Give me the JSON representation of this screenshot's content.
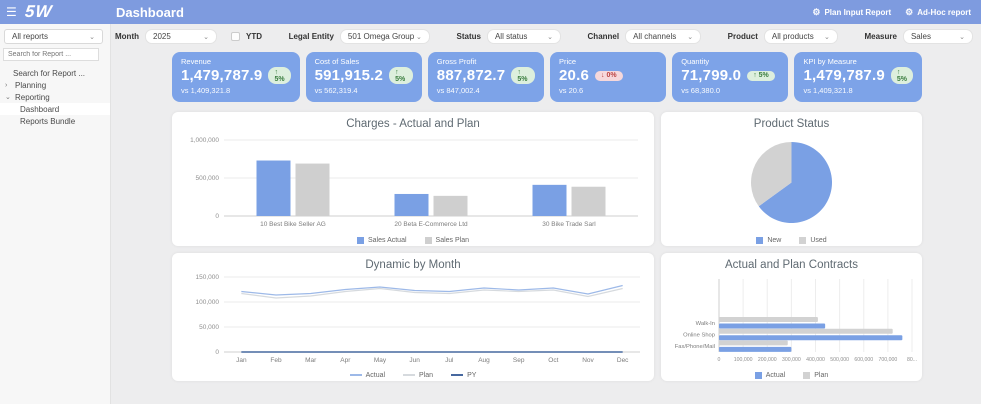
{
  "header": {
    "logo": "5W",
    "title": "Dashboard",
    "actions": [
      {
        "icon": "gear-icon",
        "label": "Plan Input Report"
      },
      {
        "icon": "gear-icon",
        "label": "Ad-Hoc report"
      }
    ]
  },
  "sidebar": {
    "reports_dropdown": "All reports",
    "search_placeholder": "Search for Report ...",
    "tree": {
      "search_item": "Search for Report ...",
      "planning": "Planning",
      "reporting": "Reporting",
      "dashboard": "Dashboard",
      "reports_bundle": "Reports Bundle"
    }
  },
  "filters": {
    "month_label": "Month",
    "month_value": "2025",
    "ytd_label": "YTD",
    "legal_entity_label": "Legal Entity",
    "legal_entity_value": "501 Omega Group",
    "status_label": "Status",
    "status_value": "All status",
    "channel_label": "Channel",
    "channel_value": "All channels",
    "product_label": "Product",
    "product_value": "All products",
    "measure_label": "Measure",
    "measure_value": "Sales"
  },
  "kpis": [
    {
      "title": "Revenue",
      "value": "1,479,787.9",
      "change": "↑ 5%",
      "direction": "up",
      "vs": "vs 1,409,321.8"
    },
    {
      "title": "Cost of Sales",
      "value": "591,915.2",
      "change": "↑ 5%",
      "direction": "up",
      "vs": "vs 562,319.4"
    },
    {
      "title": "Gross Profit",
      "value": "887,872.7",
      "change": "↑ 5%",
      "direction": "up",
      "vs": "vs 847,002.4"
    },
    {
      "title": "Price",
      "value": "20.6",
      "change": "↓ 0%",
      "direction": "down",
      "vs": "vs 20.6"
    },
    {
      "title": "Quantity",
      "value": "71,799.0",
      "change": "↑ 5%",
      "direction": "up",
      "vs": "vs 68,380.0"
    },
    {
      "title": "KPI by Measure",
      "value": "1,479,787.9",
      "change": "↑ 5%",
      "direction": "up",
      "vs": "vs 1,409,321.8"
    }
  ],
  "colors": {
    "topbar": "#7e9bdf",
    "tile": "#7da3e8",
    "chart_blue": "#7aa0e4",
    "chart_gray": "#cfcfcf"
  },
  "chart_data": [
    {
      "type": "bar",
      "title": "Charges - Actual and Plan",
      "categories": [
        "10 Best Bike Seller AG",
        "20 Beta E-Commerce Ltd",
        "30 Bike Trade Sarl"
      ],
      "series": [
        {
          "name": "Sales Actual",
          "color": "#7aa0e4",
          "values": [
            730000,
            290000,
            410000
          ]
        },
        {
          "name": "Sales Plan",
          "color": "#cfcfcf",
          "values": [
            690000,
            265000,
            385000
          ]
        }
      ],
      "ylim": [
        0,
        1000000
      ],
      "yticks": [
        0,
        500000,
        1000000
      ],
      "grid": true,
      "legend_position": "bottom"
    },
    {
      "type": "pie",
      "title": "Product Status",
      "labels": [
        "New",
        "Used"
      ],
      "values": [
        65,
        35
      ],
      "colors": [
        "#7aa0e4",
        "#d2d2d2"
      ],
      "legend_position": "bottom"
    },
    {
      "type": "line",
      "title": "Dynamic by Month",
      "x": [
        "Jan",
        "Feb",
        "Mar",
        "Apr",
        "May",
        "Jun",
        "Jul",
        "Aug",
        "Sep",
        "Oct",
        "Nov",
        "Dec"
      ],
      "series": [
        {
          "name": "Actual",
          "color": "#9db9e8",
          "values": [
            121000,
            114000,
            117000,
            125000,
            130000,
            123000,
            121000,
            128000,
            124000,
            128000,
            116000,
            133000
          ]
        },
        {
          "name": "Plan",
          "color": "#d6dade",
          "values": [
            117000,
            108000,
            112000,
            121000,
            127000,
            119000,
            117000,
            124000,
            121000,
            124000,
            111000,
            127000
          ]
        },
        {
          "name": "PY",
          "color": "#47689f",
          "values": [
            0,
            0,
            0,
            0,
            0,
            0,
            0,
            0,
            0,
            0,
            0,
            0
          ]
        }
      ],
      "ylim": [
        0,
        150000
      ],
      "yticks": [
        0,
        50000,
        100000,
        150000
      ],
      "grid": true,
      "legend_position": "bottom"
    },
    {
      "type": "hbar",
      "title": "Actual and Plan Contracts",
      "categories": [
        "Walk-In",
        "Online Shop",
        "Fax/Phone/Mail"
      ],
      "series": [
        {
          "name": "Actual",
          "color": "#7aa0e4",
          "values": [
            440000,
            760000,
            300000
          ]
        },
        {
          "name": "Plan",
          "color": "#d2d2d2",
          "values": [
            410000,
            720000,
            285000
          ]
        }
      ],
      "xlim": [
        0,
        800000
      ],
      "xticks": [
        "0",
        "100,000",
        "200,000",
        "300,000",
        "400,000",
        "500,000",
        "600,000",
        "700,000",
        "80..."
      ],
      "grid": true,
      "legend_position": "bottom"
    }
  ]
}
